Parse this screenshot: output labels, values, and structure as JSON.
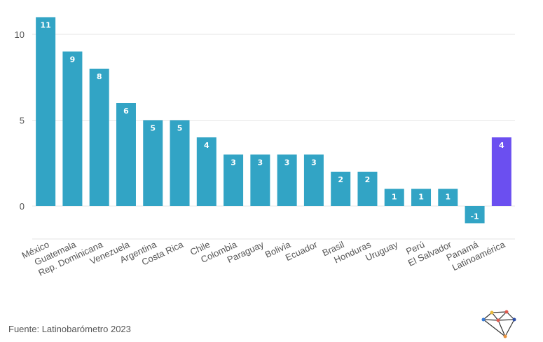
{
  "chart_data": {
    "type": "bar",
    "categories": [
      "México",
      "Guatemala",
      "Rep. Dominicana",
      "Venezuela",
      "Argentina",
      "Costa Rica",
      "Chile",
      "Colombia",
      "Paraguay",
      "Bolivia",
      "Ecuador",
      "Brasil",
      "Honduras",
      "Uruguay",
      "Perú",
      "El Salvador",
      "Panamá",
      "Latinoamérica"
    ],
    "values": [
      11,
      9,
      8,
      6,
      5,
      5,
      4,
      3,
      3,
      3,
      3,
      2,
      2,
      1,
      1,
      1,
      -1,
      4
    ],
    "data_labels": [
      "11",
      "9",
      "8",
      "6",
      "5",
      "5",
      "4",
      "3",
      "3",
      "3",
      "3",
      "2",
      "2",
      "1",
      "1",
      "1",
      "-1",
      "4"
    ],
    "bar_color": "#32a4c5",
    "highlight_color": "#6b4ff0",
    "highlight_category": "Latinoamérica",
    "yticks": [
      0,
      5,
      10
    ],
    "ytick_labels": [
      "0",
      "5",
      "10"
    ],
    "ylim": [
      -2,
      12
    ],
    "grid": true,
    "title": "",
    "xlabel": "",
    "ylabel": ""
  },
  "source": "Fuente: Latinobarómetro 2023",
  "logo_icon": "network-logo-icon"
}
